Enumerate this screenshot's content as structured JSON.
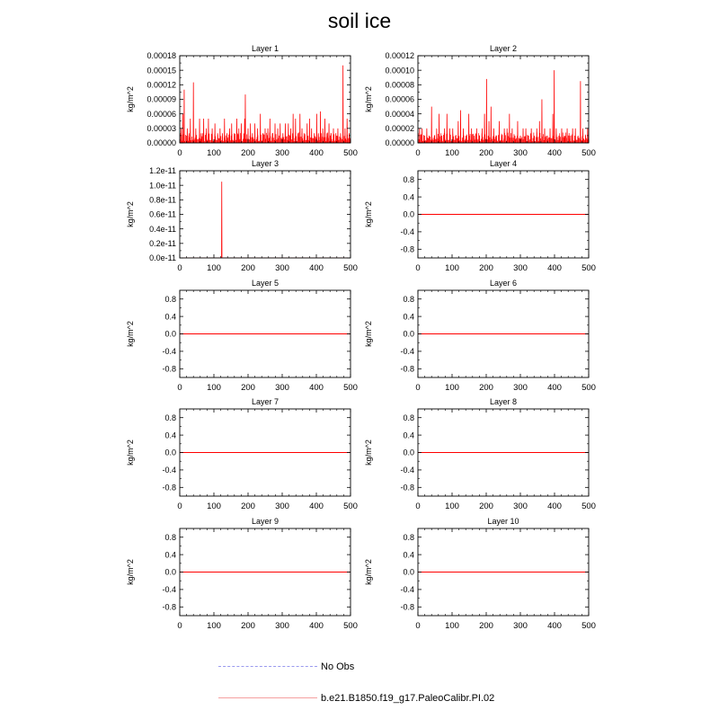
{
  "title": "soil ice",
  "colors": {
    "model_line": "#ff0000",
    "obs_line": "#9999ee",
    "legend_model": "#f4a0a0"
  },
  "legend": {
    "obs_label": "No Obs",
    "model_label": "b.e21.B1850.f19_g17.PaleoCalibr.PI.02"
  },
  "chart_data": [
    {
      "type": "line",
      "title": "Layer 1",
      "ylabel": "kg/m^2",
      "xlim": [
        0,
        500
      ],
      "ylim": [
        0,
        0.00018
      ],
      "xticks": [
        0,
        100,
        200,
        300,
        400,
        500
      ],
      "yticks": [
        0,
        3e-05,
        6e-05,
        9e-05,
        0.00012,
        0.00015,
        0.00018
      ],
      "ytick_labels": [
        "0.00000",
        "0.00003",
        "0.00006",
        "0.00009",
        "0.00012",
        "0.00015",
        "0.00018"
      ],
      "spikes": [
        [
          4,
          3e-05
        ],
        [
          9,
          6e-05
        ],
        [
          13,
          0.00011
        ],
        [
          22,
          3e-05
        ],
        [
          27,
          2e-05
        ],
        [
          31,
          5e-05
        ],
        [
          40,
          0.000125
        ],
        [
          47,
          3e-05
        ],
        [
          58,
          5e-05
        ],
        [
          63,
          2e-05
        ],
        [
          70,
          5e-05
        ],
        [
          78,
          3e-05
        ],
        [
          84,
          5e-05
        ],
        [
          95,
          3e-05
        ],
        [
          103,
          4e-05
        ],
        [
          111,
          2e-05
        ],
        [
          118,
          3e-05
        ],
        [
          125,
          2e-05
        ],
        [
          131,
          5e-05
        ],
        [
          138,
          2e-05
        ],
        [
          146,
          3e-05
        ],
        [
          152,
          4e-05
        ],
        [
          160,
          2e-05
        ],
        [
          167,
          5e-05
        ],
        [
          173,
          3e-05
        ],
        [
          180,
          4e-05
        ],
        [
          190,
          5e-05
        ],
        [
          192,
          0.0001
        ],
        [
          200,
          3e-05
        ],
        [
          207,
          4e-05
        ],
        [
          213,
          2e-05
        ],
        [
          220,
          4e-05
        ],
        [
          228,
          3e-05
        ],
        [
          236,
          6e-05
        ],
        [
          243,
          2e-05
        ],
        [
          250,
          3e-05
        ],
        [
          258,
          3e-05
        ],
        [
          264,
          5e-05
        ],
        [
          271,
          2e-05
        ],
        [
          279,
          4e-05
        ],
        [
          287,
          3e-05
        ],
        [
          294,
          4e-05
        ],
        [
          302,
          2e-05
        ],
        [
          309,
          4e-05
        ],
        [
          318,
          4e-05
        ],
        [
          325,
          3e-05
        ],
        [
          332,
          6e-05
        ],
        [
          339,
          5e-05
        ],
        [
          346,
          2e-05
        ],
        [
          352,
          6e-05
        ],
        [
          358,
          3e-05
        ],
        [
          364,
          2e-05
        ],
        [
          373,
          4e-05
        ],
        [
          380,
          5e-05
        ],
        [
          386,
          3e-05
        ],
        [
          394,
          2e-05
        ],
        [
          401,
          6e-05
        ],
        [
          406,
          2e-05
        ],
        [
          412,
          6.5e-05
        ],
        [
          419,
          3e-05
        ],
        [
          425,
          5e-05
        ],
        [
          431,
          2e-05
        ],
        [
          437,
          4e-05
        ],
        [
          443,
          2e-05
        ],
        [
          450,
          3e-05
        ],
        [
          457,
          2e-05
        ],
        [
          463,
          3e-05
        ],
        [
          471,
          2e-05
        ],
        [
          478,
          0.00016
        ],
        [
          484,
          3e-05
        ],
        [
          490,
          5e-05
        ],
        [
          496,
          2e-05
        ]
      ]
    },
    {
      "type": "line",
      "title": "Layer 2",
      "ylabel": "kg/m^2",
      "xlim": [
        0,
        500
      ],
      "ylim": [
        0,
        0.00012
      ],
      "xticks": [
        0,
        100,
        200,
        300,
        400,
        500
      ],
      "yticks": [
        0,
        2e-05,
        4e-05,
        6e-05,
        8e-05,
        0.0001,
        0.00012
      ],
      "ytick_labels": [
        "0.00000",
        "0.00002",
        "0.00004",
        "0.00006",
        "0.00008",
        "0.00010",
        "0.00012"
      ],
      "spikes": [
        [
          5,
          2e-05
        ],
        [
          12,
          2e-05
        ],
        [
          18,
          1e-05
        ],
        [
          26,
          2e-05
        ],
        [
          33,
          1e-05
        ],
        [
          40,
          5e-05
        ],
        [
          48,
          1e-05
        ],
        [
          55,
          2e-05
        ],
        [
          62,
          4e-05
        ],
        [
          70,
          1e-05
        ],
        [
          78,
          2e-05
        ],
        [
          85,
          4e-05
        ],
        [
          93,
          2e-05
        ],
        [
          102,
          2e-05
        ],
        [
          110,
          1e-05
        ],
        [
          118,
          3e-05
        ],
        [
          125,
          4.5e-05
        ],
        [
          133,
          2e-05
        ],
        [
          141,
          1e-05
        ],
        [
          149,
          4e-05
        ],
        [
          157,
          2e-05
        ],
        [
          165,
          1e-05
        ],
        [
          172,
          2e-05
        ],
        [
          180,
          1e-05
        ],
        [
          188,
          2e-05
        ],
        [
          195,
          4e-05
        ],
        [
          201,
          8.8e-05
        ],
        [
          208,
          3e-05
        ],
        [
          214,
          5e-05
        ],
        [
          222,
          2e-05
        ],
        [
          230,
          1e-05
        ],
        [
          238,
          3e-05
        ],
        [
          245,
          1e-05
        ],
        [
          253,
          2e-05
        ],
        [
          261,
          2e-05
        ],
        [
          268,
          4e-05
        ],
        [
          276,
          2e-05
        ],
        [
          284,
          1e-05
        ],
        [
          292,
          3e-05
        ],
        [
          300,
          1e-05
        ],
        [
          308,
          2e-05
        ],
        [
          316,
          2e-05
        ],
        [
          324,
          1e-05
        ],
        [
          332,
          2e-05
        ],
        [
          340,
          1e-05
        ],
        [
          348,
          2e-05
        ],
        [
          356,
          3e-05
        ],
        [
          363,
          6e-05
        ],
        [
          371,
          2e-05
        ],
        [
          379,
          1e-05
        ],
        [
          387,
          2e-05
        ],
        [
          395,
          4e-05
        ],
        [
          399,
          0.0001
        ],
        [
          405,
          2e-05
        ],
        [
          413,
          1e-05
        ],
        [
          421,
          2e-05
        ],
        [
          429,
          1e-05
        ],
        [
          437,
          2e-05
        ],
        [
          445,
          1e-05
        ],
        [
          453,
          2e-05
        ],
        [
          461,
          2e-05
        ],
        [
          469,
          1e-05
        ],
        [
          476,
          8.5e-05
        ],
        [
          483,
          2e-05
        ],
        [
          491,
          1e-05
        ],
        [
          497,
          2e-05
        ]
      ]
    },
    {
      "type": "line",
      "title": "Layer 3",
      "ylabel": "kg/m^2",
      "xlim": [
        0,
        500
      ],
      "ylim": [
        0,
        1.2e-11
      ],
      "xticks": [
        0,
        100,
        200,
        300,
        400,
        500
      ],
      "yticks": [
        0,
        2e-12,
        4e-12,
        6e-12,
        8e-12,
        1e-11,
        1.2e-11
      ],
      "ytick_labels": [
        "0.0e-11",
        "0.2e-11",
        "0.4e-11",
        "0.6e-11",
        "0.8e-11",
        "1.0e-11",
        "1.2e-11"
      ],
      "spikes": [
        [
          123,
          1.05e-11
        ]
      ]
    },
    {
      "type": "line",
      "title": "Layer 4",
      "ylabel": "kg/m^2",
      "xlim": [
        0,
        500
      ],
      "ylim": [
        -1,
        1
      ],
      "xticks": [
        0,
        100,
        200,
        300,
        400,
        500
      ],
      "yticks": [
        -0.8,
        -0.4,
        0,
        0.4,
        0.8
      ],
      "ytick_labels": [
        "-0.8",
        "-0.4",
        "0.0",
        "0.4",
        "0.8"
      ],
      "values": "all zero"
    },
    {
      "type": "line",
      "title": "Layer 5",
      "ylabel": "kg/m^2",
      "xlim": [
        0,
        500
      ],
      "ylim": [
        -1,
        1
      ],
      "xticks": [
        0,
        100,
        200,
        300,
        400,
        500
      ],
      "yticks": [
        -0.8,
        -0.4,
        0,
        0.4,
        0.8
      ],
      "ytick_labels": [
        "-0.8",
        "-0.4",
        "0.0",
        "0.4",
        "0.8"
      ],
      "values": "all zero"
    },
    {
      "type": "line",
      "title": "Layer 6",
      "ylabel": "kg/m^2",
      "xlim": [
        0,
        500
      ],
      "ylim": [
        -1,
        1
      ],
      "xticks": [
        0,
        100,
        200,
        300,
        400,
        500
      ],
      "yticks": [
        -0.8,
        -0.4,
        0,
        0.4,
        0.8
      ],
      "ytick_labels": [
        "-0.8",
        "-0.4",
        "0.0",
        "0.4",
        "0.8"
      ],
      "values": "all zero"
    },
    {
      "type": "line",
      "title": "Layer 7",
      "ylabel": "kg/m^2",
      "xlim": [
        0,
        500
      ],
      "ylim": [
        -1,
        1
      ],
      "xticks": [
        0,
        100,
        200,
        300,
        400,
        500
      ],
      "yticks": [
        -0.8,
        -0.4,
        0,
        0.4,
        0.8
      ],
      "ytick_labels": [
        "-0.8",
        "-0.4",
        "0.0",
        "0.4",
        "0.8"
      ],
      "values": "all zero"
    },
    {
      "type": "line",
      "title": "Layer 8",
      "ylabel": "kg/m^2",
      "xlim": [
        0,
        500
      ],
      "ylim": [
        -1,
        1
      ],
      "xticks": [
        0,
        100,
        200,
        300,
        400,
        500
      ],
      "yticks": [
        -0.8,
        -0.4,
        0,
        0.4,
        0.8
      ],
      "ytick_labels": [
        "-0.8",
        "-0.4",
        "0.0",
        "0.4",
        "0.8"
      ],
      "values": "all zero"
    },
    {
      "type": "line",
      "title": "Layer 9",
      "ylabel": "kg/m^2",
      "xlim": [
        0,
        500
      ],
      "ylim": [
        -1,
        1
      ],
      "xticks": [
        0,
        100,
        200,
        300,
        400,
        500
      ],
      "yticks": [
        -0.8,
        -0.4,
        0,
        0.4,
        0.8
      ],
      "ytick_labels": [
        "-0.8",
        "-0.4",
        "0.0",
        "0.4",
        "0.8"
      ],
      "values": "all zero"
    },
    {
      "type": "line",
      "title": "Layer 10",
      "ylabel": "kg/m^2",
      "xlim": [
        0,
        500
      ],
      "ylim": [
        -1,
        1
      ],
      "xticks": [
        0,
        100,
        200,
        300,
        400,
        500
      ],
      "yticks": [
        -0.8,
        -0.4,
        0,
        0.4,
        0.8
      ],
      "ytick_labels": [
        "-0.8",
        "-0.4",
        "0.0",
        "0.4",
        "0.8"
      ],
      "values": "all zero"
    }
  ]
}
